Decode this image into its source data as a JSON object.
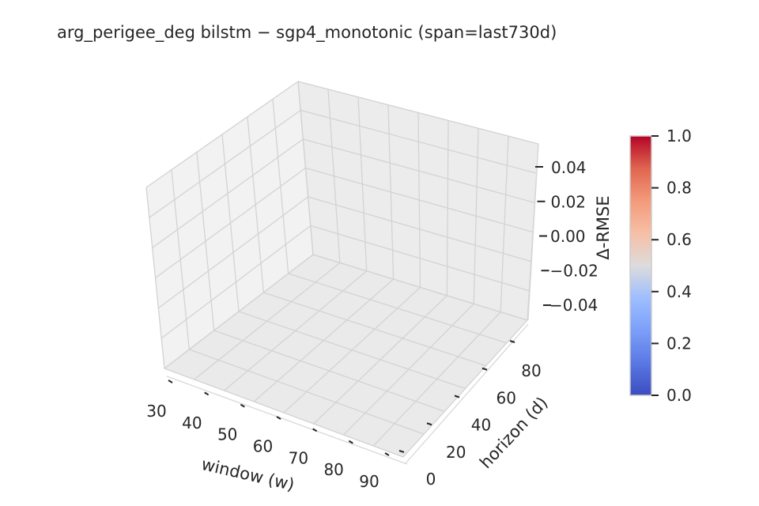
{
  "chart_data": {
    "type": "surface3d",
    "title": "arg_perigee_deg  bilstm − sgp4_monotonic  (span=last730d)",
    "xlabel": "window (w)",
    "ylabel": "horizon (d)",
    "zlabel": "Δ-RMSE",
    "x_ticks": [
      "30",
      "40",
      "50",
      "60",
      "70",
      "80",
      "90"
    ],
    "y_ticks": [
      "0",
      "20",
      "40",
      "60",
      "80"
    ],
    "z_ticks": [
      "−0.04",
      "−0.02",
      "0.00",
      "0.02",
      "0.04"
    ],
    "colorbar": {
      "ticks": [
        "0.0",
        "0.2",
        "0.4",
        "0.6",
        "0.8",
        "1.0"
      ],
      "colormap": "coolwarm",
      "range": [
        0,
        1
      ]
    },
    "series": [],
    "grid": true
  }
}
